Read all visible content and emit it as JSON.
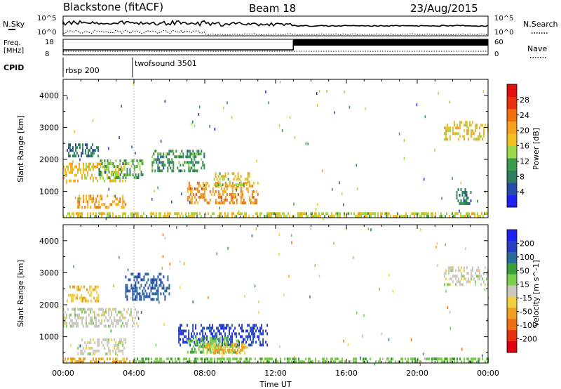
{
  "header": {
    "station": "Blackstone (fitACF)",
    "beam": "Beam 18",
    "date": "23/Aug/2015"
  },
  "top_panels": {
    "nsky_label": "N.Sky",
    "nsearch_label": "N.Search",
    "left_ticks": [
      "10^5",
      "10^0"
    ],
    "right_ticks": [
      "10^5",
      "10^0"
    ],
    "freq_label": "Freq.",
    "freq_unit": "[MHz]",
    "freq_ticks": [
      "18",
      "8"
    ],
    "nave_ticks": [
      "60",
      "0"
    ],
    "nave_label": "Nave",
    "cpid_label": "CPID",
    "cpid_programs": [
      {
        "name": "rbsp 200",
        "start_hour": 0
      },
      {
        "name": "twofsound 3501",
        "start_hour": 4.0
      }
    ]
  },
  "colors": {
    "power": [
      "#1f22f0",
      "#264ea8",
      "#2e7d61",
      "#3a9a4c",
      "#9cd84a",
      "#f0c020",
      "#f5a020",
      "#f07010",
      "#e83010",
      "#e01010"
    ],
    "velocity": [
      "#1f22f0",
      "#2540c0",
      "#2a6a9a",
      "#3a9f3a",
      "#7ad04a",
      "#c8c8c0",
      "#f0d040",
      "#f0a020",
      "#ec7010",
      "#e83010",
      "#e00010"
    ]
  },
  "chart_data": [
    {
      "type": "heatmap",
      "xlabel": "",
      "ylabel": "Slant Range [km]",
      "xlim": [
        0,
        24
      ],
      "ylim": [
        180,
        4500
      ],
      "yticks": [
        1000,
        2000,
        3000,
        4000
      ],
      "colorbar": {
        "label": "Power [dB]",
        "range": [
          0,
          32
        ],
        "ticks": [
          "4",
          "8",
          "12",
          "16",
          "20",
          "24",
          "28"
        ]
      },
      "regions": [
        {
          "x": [
            0.0,
            3.5
          ],
          "y": [
            1300,
            1900
          ],
          "value": 18
        },
        {
          "x": [
            0.8,
            3.6
          ],
          "y": [
            500,
            900
          ],
          "value": 20
        },
        {
          "x": [
            0.2,
            2.0
          ],
          "y": [
            2100,
            2500
          ],
          "value": 8
        },
        {
          "x": [
            2.0,
            4.5
          ],
          "y": [
            1400,
            2000
          ],
          "value": 12
        },
        {
          "x": [
            5.0,
            8.0
          ],
          "y": [
            1600,
            2300
          ],
          "value": 10
        },
        {
          "x": [
            7.0,
            11.0
          ],
          "y": [
            600,
            1300
          ],
          "value": 22
        },
        {
          "x": [
            8.5,
            10.5
          ],
          "y": [
            1200,
            1600
          ],
          "value": 16
        },
        {
          "x": [
            0.0,
            24.0
          ],
          "y": [
            180,
            350
          ],
          "value": 16
        },
        {
          "x": [
            21.5,
            24.0
          ],
          "y": [
            2600,
            3200
          ],
          "value": 18
        },
        {
          "x": [
            22.2,
            23.0
          ],
          "y": [
            600,
            1100
          ],
          "value": 8
        }
      ]
    },
    {
      "type": "heatmap",
      "xlabel": "Time UT",
      "ylabel": "Slant Range [km]",
      "xlim": [
        0,
        24
      ],
      "ylim": [
        180,
        4500
      ],
      "xticks": [
        "00:00",
        "04:00",
        "08:00",
        "12:00",
        "16:00",
        "20:00",
        "00:00"
      ],
      "yticks": [
        1000,
        2000,
        3000,
        4000
      ],
      "colorbar": {
        "label": "Velocity [m s^-1]",
        "range": [
          -250,
          250
        ],
        "ticks": [
          "200",
          "100",
          "50",
          "15",
          "-15",
          "-50",
          "-100",
          "-200"
        ]
      },
      "regions": [
        {
          "x": [
            0.0,
            4.2
          ],
          "y": [
            1300,
            1900
          ],
          "value": 0
        },
        {
          "x": [
            0.8,
            3.5
          ],
          "y": [
            500,
            950
          ],
          "value": 0
        },
        {
          "x": [
            0.2,
            2.0
          ],
          "y": [
            2100,
            2600
          ],
          "value": -60
        },
        {
          "x": [
            0.0,
            4.0
          ],
          "y": [
            180,
            350
          ],
          "value": -80
        },
        {
          "x": [
            3.5,
            6.0
          ],
          "y": [
            2200,
            3000
          ],
          "value": 150
        },
        {
          "x": [
            6.5,
            11.5
          ],
          "y": [
            700,
            1400
          ],
          "value": 180
        },
        {
          "x": [
            7.0,
            10.0
          ],
          "y": [
            500,
            1000
          ],
          "value": 60
        },
        {
          "x": [
            8.0,
            10.5
          ],
          "y": [
            500,
            800
          ],
          "value": -60
        },
        {
          "x": [
            4.0,
            24.0
          ],
          "y": [
            180,
            350
          ],
          "value": 50
        },
        {
          "x": [
            21.5,
            24.0
          ],
          "y": [
            2600,
            3200
          ],
          "value": 0
        }
      ]
    }
  ]
}
